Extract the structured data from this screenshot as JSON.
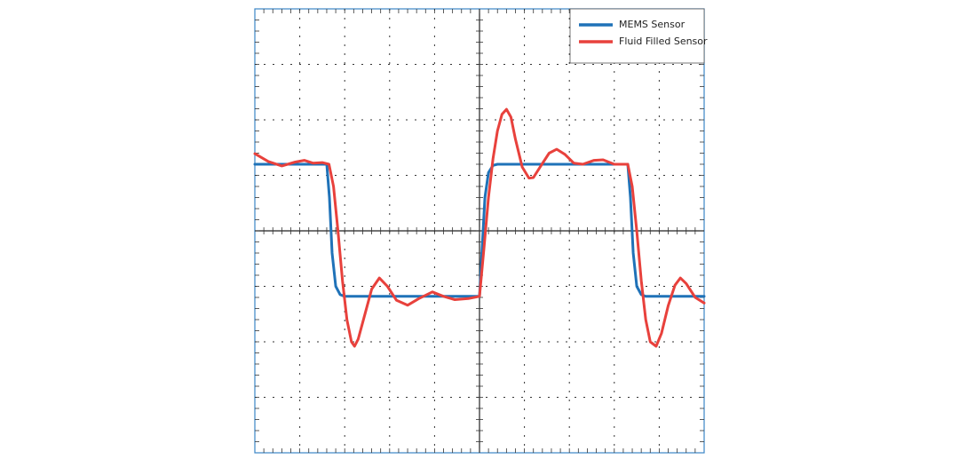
{
  "chart_data": {
    "type": "line",
    "xlim": [
      0,
      10
    ],
    "xticks": [
      1,
      2,
      3,
      4,
      5,
      6,
      7,
      8,
      9
    ],
    "ylim": [
      -4,
      4
    ],
    "yticks": [
      -3,
      -2,
      -1,
      0,
      1,
      2,
      3
    ],
    "grid": true,
    "legend": "upper right",
    "series": [
      {
        "name": "MEMS Sensor",
        "color": "#1f72b8",
        "x": [
          0,
          1.6,
          1.66,
          1.72,
          1.8,
          1.9,
          2.0,
          5.0,
          5.06,
          5.12,
          5.2,
          5.3,
          5.4,
          8.3,
          8.36,
          8.42,
          8.5,
          8.6,
          8.7,
          10
        ],
        "values": [
          1.2,
          1.2,
          0.6,
          -0.4,
          -1.0,
          -1.15,
          -1.18,
          -1.18,
          -0.3,
          0.6,
          1.05,
          1.18,
          1.2,
          1.2,
          0.6,
          -0.4,
          -1.0,
          -1.15,
          -1.18,
          -1.18
        ]
      },
      {
        "name": "Fluid Filled Sensor",
        "color": "#e8413c",
        "x": [
          0,
          0.3,
          0.6,
          0.9,
          1.1,
          1.3,
          1.5,
          1.65,
          1.75,
          1.85,
          1.95,
          2.05,
          2.15,
          2.22,
          2.3,
          2.45,
          2.6,
          2.77,
          2.95,
          3.15,
          3.4,
          3.65,
          3.95,
          4.2,
          4.45,
          4.75,
          5.0,
          5.1,
          5.2,
          5.3,
          5.4,
          5.5,
          5.6,
          5.7,
          5.8,
          5.95,
          6.1,
          6.2,
          6.35,
          6.55,
          6.72,
          6.9,
          7.1,
          7.3,
          7.55,
          7.75,
          8.0,
          8.3,
          8.4,
          8.5,
          8.6,
          8.7,
          8.8,
          8.93,
          9.05,
          9.2,
          9.35,
          9.47,
          9.6,
          9.8,
          10
        ],
        "values": [
          1.39,
          1.25,
          1.17,
          1.24,
          1.27,
          1.22,
          1.23,
          1.2,
          0.8,
          0,
          -0.9,
          -1.6,
          -2.0,
          -2.08,
          -1.95,
          -1.5,
          -1.05,
          -0.85,
          -1.0,
          -1.25,
          -1.34,
          -1.22,
          -1.1,
          -1.18,
          -1.24,
          -1.22,
          -1.18,
          -0.3,
          0.6,
          1.3,
          1.8,
          2.1,
          2.19,
          2.05,
          1.65,
          1.15,
          0.95,
          0.96,
          1.15,
          1.4,
          1.47,
          1.38,
          1.22,
          1.2,
          1.27,
          1.28,
          1.2,
          1.2,
          0.8,
          0,
          -0.9,
          -1.6,
          -2.0,
          -2.08,
          -1.85,
          -1.35,
          -0.98,
          -0.85,
          -0.95,
          -1.2,
          -1.3
        ]
      }
    ]
  }
}
